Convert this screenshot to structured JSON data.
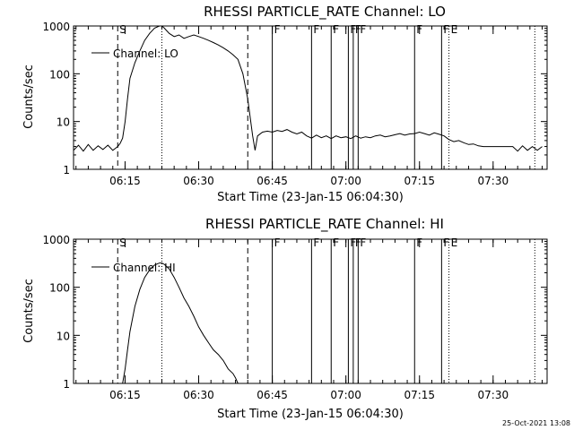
{
  "chart_data": [
    {
      "type": "line",
      "title": "RHESSI  PARTICLE_RATE  Channel:  LO",
      "xlabel": "Start Time (23-Jan-15 06:04:30)",
      "ylabel": "Counts/sec",
      "yscale": "log",
      "ylim": [
        1,
        1000
      ],
      "xlim": [
        "06:04:30",
        "07:41:00"
      ],
      "xticks": [
        "06:15",
        "06:30",
        "06:45",
        "07:00",
        "07:15",
        "07:30"
      ],
      "yticks": [
        "1",
        "10",
        "100",
        "1000"
      ],
      "legend": "top-left",
      "series": [
        {
          "name": "Channel:  LO",
          "x": [
            "06:04:30",
            "06:05:30",
            "06:06:30",
            "06:07:30",
            "06:08:30",
            "06:09:30",
            "06:10:30",
            "06:11:30",
            "06:12:30",
            "06:13:30",
            "06:14:00",
            "06:14:30",
            "06:15:00",
            "06:15:30",
            "06:16:00",
            "06:17:00",
            "06:18:00",
            "06:19:00",
            "06:20:00",
            "06:21:00",
            "06:22:00",
            "06:22:30",
            "06:23:00",
            "06:24:00",
            "06:25:00",
            "06:26:00",
            "06:27:00",
            "06:28:00",
            "06:29:00",
            "06:30:00",
            "06:31:00",
            "06:32:00",
            "06:33:00",
            "06:34:00",
            "06:35:00",
            "06:36:00",
            "06:37:00",
            "06:38:00",
            "06:39:00",
            "06:40:00",
            "06:41:00",
            "06:41:30",
            "06:42:00",
            "06:43:00",
            "06:44:00",
            "06:45:00",
            "06:46:00",
            "06:47:00",
            "06:48:00",
            "06:49:00",
            "06:50:00",
            "06:51:00",
            "06:52:00",
            "06:53:00",
            "06:54:00",
            "06:55:00",
            "06:56:00",
            "06:57:00",
            "06:58:00",
            "06:59:00",
            "07:00:00",
            "07:01:00",
            "07:02:00",
            "07:03:00",
            "07:04:00",
            "07:05:00",
            "07:06:00",
            "07:07:00",
            "07:08:00",
            "07:09:00",
            "07:10:00",
            "07:11:00",
            "07:12:00",
            "07:13:00",
            "07:14:00",
            "07:15:00",
            "07:16:00",
            "07:17:00",
            "07:18:00",
            "07:19:00",
            "07:20:00",
            "07:21:00",
            "07:22:00",
            "07:23:00",
            "07:24:00",
            "07:25:00",
            "07:26:00",
            "07:27:00",
            "07:28:00",
            "07:29:00",
            "07:30:00",
            "07:31:00",
            "07:32:00",
            "07:33:00",
            "07:34:00",
            "07:35:00",
            "07:36:00",
            "07:37:00",
            "07:38:00",
            "07:39:00",
            "07:40:00"
          ],
          "values": [
            2.5,
            3.2,
            2.4,
            3.3,
            2.5,
            3.1,
            2.6,
            3.2,
            2.5,
            3,
            3.5,
            4.5,
            10,
            30,
            80,
            170,
            300,
            500,
            700,
            900,
            1000,
            1000,
            900,
            700,
            600,
            650,
            550,
            600,
            650,
            600,
            550,
            500,
            450,
            400,
            350,
            300,
            250,
            200,
            100,
            30,
            5,
            2.5,
            5,
            6,
            6.3,
            6,
            6.5,
            6.2,
            6.8,
            6,
            5.5,
            6,
            5,
            4.5,
            5.2,
            4.6,
            5,
            4.4,
            5,
            4.6,
            4.8,
            4.4,
            5,
            4.5,
            4.8,
            4.6,
            5,
            5.2,
            4.8,
            5,
            5.3,
            5.6,
            5.2,
            5.5,
            5.6,
            6,
            5.6,
            5.2,
            5.8,
            5.4,
            5,
            4.2,
            3.8,
            4,
            3.6,
            3.3,
            3.4,
            3.1,
            3,
            3,
            3,
            3,
            3,
            3,
            3,
            2.4,
            3.1,
            2.5,
            3,
            2.5,
            3
          ]
        }
      ],
      "markers": [
        {
          "time": "06:13:30",
          "style": "dashed",
          "label": "S"
        },
        {
          "time": "06:22:30",
          "style": "dotted",
          "label": ""
        },
        {
          "time": "06:40:00",
          "style": "dashed",
          "label": ""
        },
        {
          "time": "06:45:00",
          "style": "solid",
          "label": "F"
        },
        {
          "time": "06:53:00",
          "style": "solid",
          "label": "F"
        },
        {
          "time": "06:57:00",
          "style": "solid",
          "label": "F"
        },
        {
          "time": "07:00:30",
          "style": "solid",
          "label": "F"
        },
        {
          "time": "07:01:30",
          "style": "solid",
          "label": "F"
        },
        {
          "time": "07:02:30",
          "style": "solid",
          "label": "F"
        },
        {
          "time": "07:14:00",
          "style": "solid",
          "label": "F"
        },
        {
          "time": "07:19:30",
          "style": "solid",
          "label": "F"
        },
        {
          "time": "07:21:00",
          "style": "dotted",
          "label": "E"
        },
        {
          "time": "07:38:30",
          "style": "dotted",
          "label": ""
        }
      ]
    },
    {
      "type": "line",
      "title": "RHESSI  PARTICLE_RATE  Channel:  HI",
      "xlabel": "Start Time (23-Jan-15 06:04:30)",
      "ylabel": "Counts/sec",
      "yscale": "log",
      "ylim": [
        1,
        1000
      ],
      "xlim": [
        "06:04:30",
        "07:41:00"
      ],
      "xticks": [
        "06:15",
        "06:30",
        "06:45",
        "07:00",
        "07:15",
        "07:30"
      ],
      "yticks": [
        "1",
        "10",
        "100",
        "1000"
      ],
      "legend": "top-left",
      "series": [
        {
          "name": "Channel:  HI",
          "x": [
            "06:14:30",
            "06:15:00",
            "06:15:30",
            "06:16:00",
            "06:17:00",
            "06:18:00",
            "06:19:00",
            "06:20:00",
            "06:21:00",
            "06:22:00",
            "06:22:30",
            "06:23:00",
            "06:24:00",
            "06:25:00",
            "06:26:00",
            "06:27:00",
            "06:28:00",
            "06:29:00",
            "06:30:00",
            "06:31:00",
            "06:32:00",
            "06:33:00",
            "06:34:00",
            "06:35:00",
            "06:36:00",
            "06:37:00",
            "06:37:30",
            "06:38:00"
          ],
          "values": [
            1,
            2,
            5,
            12,
            40,
            90,
            160,
            230,
            290,
            320,
            320,
            300,
            240,
            160,
            100,
            60,
            40,
            25,
            15,
            10,
            7,
            5,
            4,
            3,
            2,
            1.6,
            1.3,
            1
          ]
        }
      ],
      "markers": [
        {
          "time": "06:13:30",
          "style": "dashed",
          "label": "S"
        },
        {
          "time": "06:22:30",
          "style": "dotted",
          "label": ""
        },
        {
          "time": "06:40:00",
          "style": "dashed",
          "label": ""
        },
        {
          "time": "06:45:00",
          "style": "solid",
          "label": "F"
        },
        {
          "time": "06:53:00",
          "style": "solid",
          "label": "F"
        },
        {
          "time": "06:57:00",
          "style": "solid",
          "label": "F"
        },
        {
          "time": "07:00:30",
          "style": "solid",
          "label": "F"
        },
        {
          "time": "07:01:30",
          "style": "solid",
          "label": "F"
        },
        {
          "time": "07:02:30",
          "style": "solid",
          "label": "F"
        },
        {
          "time": "07:14:00",
          "style": "solid",
          "label": "F"
        },
        {
          "time": "07:19:30",
          "style": "solid",
          "label": "F"
        },
        {
          "time": "07:21:00",
          "style": "dotted",
          "label": "E"
        },
        {
          "time": "07:38:30",
          "style": "dotted",
          "label": ""
        }
      ]
    }
  ],
  "footer": {
    "timestamp": "25-Oct-2021 13:08"
  }
}
